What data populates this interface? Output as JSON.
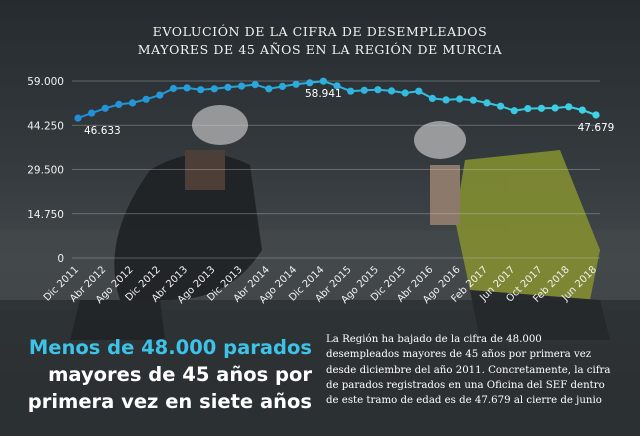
{
  "title_lines": [
    "EVOLUCIÓN DE LA CIFRA DE DESEMPLEADOS",
    "MAYORES DE 45 AÑOS EN LA REGIÓN DE MURCIA"
  ],
  "chart_data": {
    "type": "line",
    "title": "EVOLUCIÓN DE LA CIFRA DE DESEMPLEADOS MAYORES DE 45 AÑOS EN LA REGIÓN DE MURCIA",
    "xlabel": "",
    "ylabel": "",
    "ylim": [
      0,
      59000
    ],
    "yticks": [
      "0",
      "14.750",
      "29.500",
      "44.250",
      "59.000"
    ],
    "ytick_values": [
      0,
      14750,
      29500,
      44250,
      59000
    ],
    "xtick_labels": [
      "Dic 2011",
      "Abr 2012",
      "Ago 2012",
      "Dic 2012",
      "Abr 2013",
      "Ago 2013",
      "Dic 2013",
      "Abr 2014",
      "Ago 2014",
      "Dic 2014",
      "Abr 2015",
      "Ago 2015",
      "Dic 2015",
      "Abr 2016",
      "Ago 2016",
      "Feb 2017",
      "Jun 2017",
      "Oct 2017",
      "Feb 2018",
      "Jun 2018"
    ],
    "grid": true,
    "series": [
      {
        "color": "#2aa9e0",
        "values": [
          46633,
          48300,
          49900,
          51200,
          51700,
          52900,
          54300,
          56500,
          56700,
          56100,
          56400,
          56900,
          57300,
          57800,
          56400,
          57200,
          57900,
          58400,
          58941,
          57400,
          55600,
          55900,
          56100,
          55700,
          55000,
          55600,
          53200,
          52700,
          53000,
          52600,
          51700,
          50600,
          49100,
          49800,
          49900,
          50000,
          50400,
          49300,
          47679
        ]
      }
    ],
    "annotations": [
      {
        "text": "46.633",
        "index": 0
      },
      {
        "text": "58.941",
        "index": 18
      },
      {
        "text": "47.679",
        "index": 38
      }
    ]
  },
  "headline_lines": [
    "Menos de 48.000 parados",
    "mayores de 45 años por",
    "primera vez en siete años"
  ],
  "body_lines": [
    "La Región ha bajado de la cifra de 48.000",
    "desempleados mayores de 45 años por primera vez",
    "desde diciembre del año 2011. Concretamente, la cifra",
    "de parados registrados en una Oficina del SEF dentro",
    "de este tramo de edad es de 47.679 al cierre de junio"
  ],
  "colors": {
    "line_start": "#1f8fd6",
    "line_end": "#3fd4e6",
    "highlight": "#3dc3e8",
    "text": "#ffffff"
  }
}
